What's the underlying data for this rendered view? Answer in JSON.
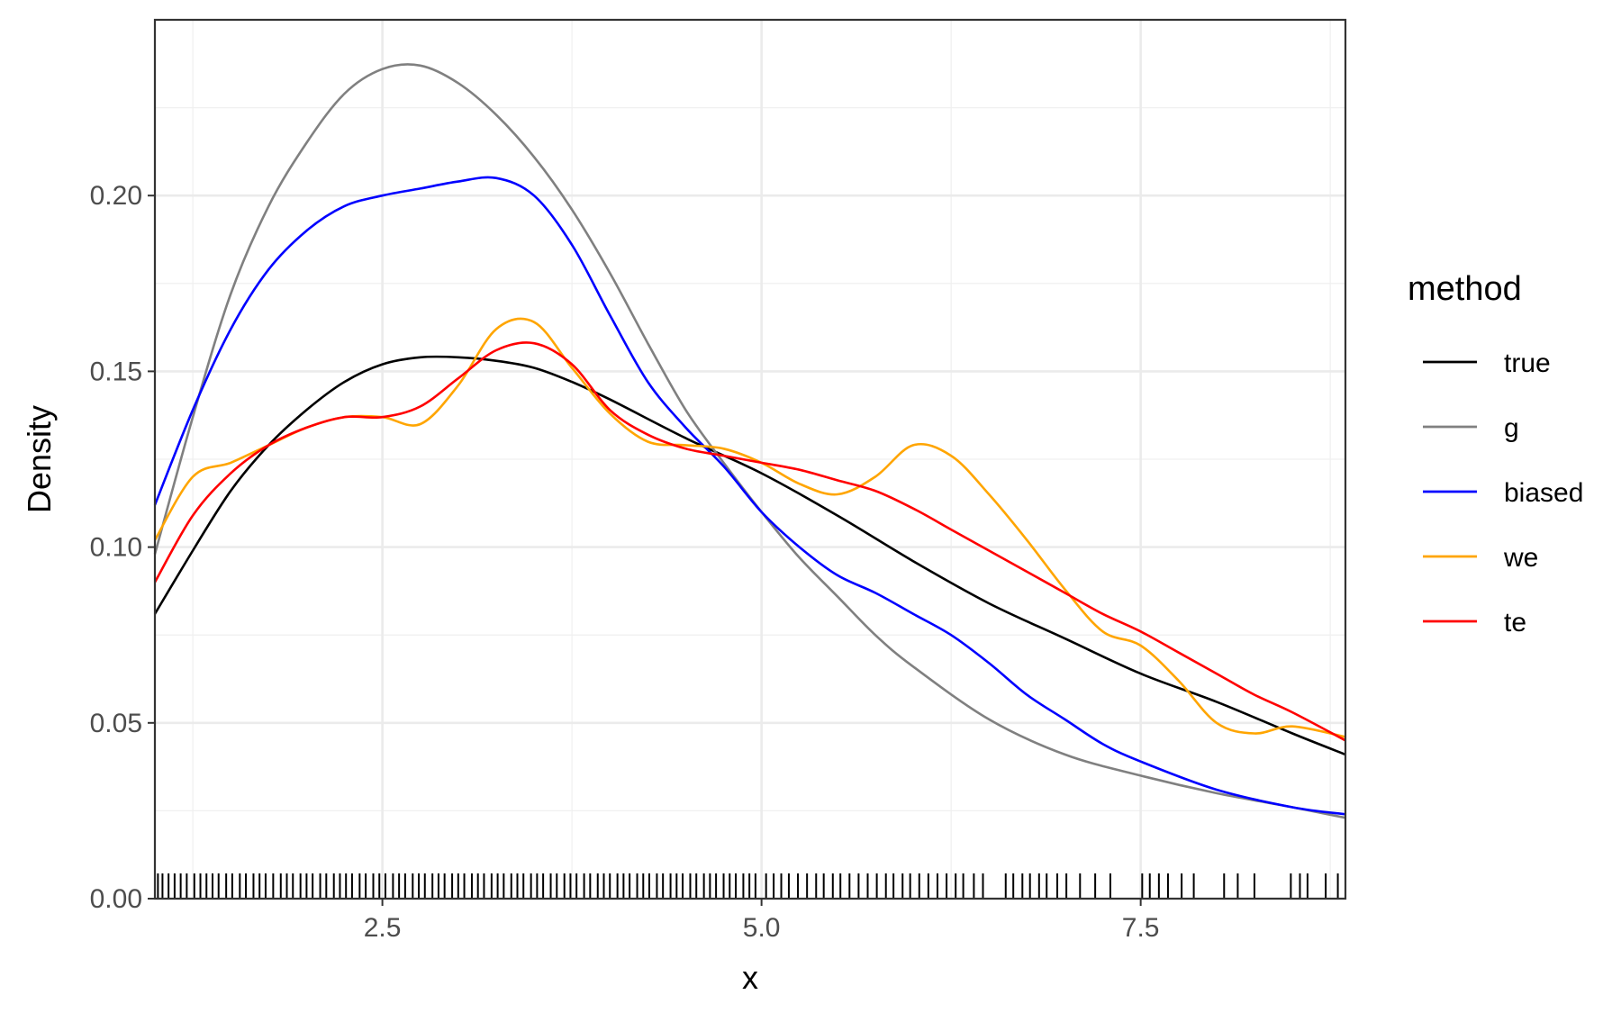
{
  "chart_data": {
    "type": "line",
    "xlabel": "x",
    "ylabel": "Density",
    "xlim": [
      1.0,
      8.85
    ],
    "ylim": [
      0.0,
      0.25
    ],
    "x_ticks": [
      2.5,
      5.0,
      7.5
    ],
    "x_tick_labels": [
      "2.5",
      "5.0",
      "7.5"
    ],
    "y_ticks": [
      0.0,
      0.05,
      0.1,
      0.15,
      0.2
    ],
    "y_tick_labels": [
      "0.00",
      "0.05",
      "0.10",
      "0.15",
      "0.20"
    ],
    "grid": true,
    "legend": {
      "title": "method",
      "position": "right",
      "items": [
        {
          "label": "true",
          "color": "#000000"
        },
        {
          "label": "g",
          "color": "#808080"
        },
        {
          "label": "biased",
          "color": "#0000ff"
        },
        {
          "label": "we",
          "color": "#ffa500"
        },
        {
          "label": "te",
          "color": "#ff0000"
        }
      ]
    },
    "series": [
      {
        "name": "true",
        "color": "#000000",
        "x": [
          1.0,
          1.25,
          1.5,
          1.75,
          2.0,
          2.25,
          2.5,
          2.75,
          3.0,
          3.25,
          3.5,
          3.75,
          4.0,
          4.5,
          5.0,
          5.5,
          6.0,
          6.5,
          7.0,
          7.5,
          8.0,
          8.5,
          8.85
        ],
        "y": [
          0.081,
          0.099,
          0.116,
          0.129,
          0.139,
          0.147,
          0.152,
          0.154,
          0.154,
          0.153,
          0.151,
          0.147,
          0.142,
          0.131,
          0.121,
          0.109,
          0.096,
          0.084,
          0.074,
          0.064,
          0.056,
          0.047,
          0.041
        ]
      },
      {
        "name": "g",
        "color": "#808080",
        "x": [
          1.0,
          1.25,
          1.5,
          1.75,
          2.0,
          2.25,
          2.5,
          2.75,
          3.0,
          3.25,
          3.5,
          3.75,
          4.0,
          4.25,
          4.5,
          4.75,
          5.0,
          5.25,
          5.5,
          5.75,
          6.0,
          6.5,
          7.0,
          7.5,
          8.0,
          8.5,
          8.85
        ],
        "y": [
          0.098,
          0.137,
          0.172,
          0.197,
          0.215,
          0.229,
          0.236,
          0.237,
          0.232,
          0.223,
          0.211,
          0.196,
          0.178,
          0.158,
          0.139,
          0.124,
          0.11,
          0.097,
          0.086,
          0.075,
          0.066,
          0.051,
          0.041,
          0.035,
          0.03,
          0.026,
          0.023
        ]
      },
      {
        "name": "biased",
        "color": "#0000ff",
        "x": [
          1.0,
          1.25,
          1.5,
          1.75,
          2.0,
          2.25,
          2.5,
          2.75,
          3.0,
          3.25,
          3.5,
          3.75,
          4.0,
          4.25,
          4.5,
          4.75,
          5.0,
          5.25,
          5.5,
          5.75,
          6.0,
          6.25,
          6.5,
          6.75,
          7.0,
          7.25,
          7.5,
          8.0,
          8.5,
          8.85
        ],
        "y": [
          0.112,
          0.139,
          0.162,
          0.179,
          0.19,
          0.197,
          0.2,
          0.202,
          0.204,
          0.205,
          0.2,
          0.186,
          0.166,
          0.147,
          0.134,
          0.123,
          0.11,
          0.1,
          0.092,
          0.087,
          0.081,
          0.075,
          0.067,
          0.058,
          0.051,
          0.044,
          0.039,
          0.031,
          0.026,
          0.024
        ]
      },
      {
        "name": "we",
        "color": "#ffa500",
        "x": [
          1.0,
          1.25,
          1.5,
          1.75,
          2.0,
          2.25,
          2.5,
          2.75,
          3.0,
          3.25,
          3.5,
          3.75,
          4.0,
          4.25,
          4.5,
          4.75,
          5.0,
          5.25,
          5.5,
          5.75,
          6.0,
          6.25,
          6.5,
          6.75,
          7.0,
          7.25,
          7.5,
          7.75,
          8.0,
          8.25,
          8.5,
          8.85
        ],
        "y": [
          0.102,
          0.12,
          0.124,
          0.129,
          0.134,
          0.137,
          0.137,
          0.135,
          0.146,
          0.162,
          0.164,
          0.151,
          0.138,
          0.13,
          0.129,
          0.128,
          0.124,
          0.118,
          0.115,
          0.12,
          0.129,
          0.126,
          0.115,
          0.102,
          0.088,
          0.076,
          0.072,
          0.062,
          0.05,
          0.047,
          0.049,
          0.046
        ]
      },
      {
        "name": "te",
        "color": "#ff0000",
        "x": [
          1.0,
          1.25,
          1.5,
          1.75,
          2.0,
          2.25,
          2.5,
          2.75,
          3.0,
          3.25,
          3.5,
          3.75,
          4.0,
          4.25,
          4.5,
          4.75,
          5.0,
          5.25,
          5.5,
          5.75,
          6.0,
          6.25,
          6.5,
          6.75,
          7.0,
          7.25,
          7.5,
          7.75,
          8.0,
          8.25,
          8.5,
          8.85
        ],
        "y": [
          0.09,
          0.109,
          0.121,
          0.129,
          0.134,
          0.137,
          0.137,
          0.14,
          0.148,
          0.156,
          0.158,
          0.152,
          0.139,
          0.132,
          0.128,
          0.126,
          0.124,
          0.122,
          0.119,
          0.116,
          0.111,
          0.105,
          0.099,
          0.093,
          0.087,
          0.081,
          0.076,
          0.07,
          0.064,
          0.058,
          0.053,
          0.045
        ]
      }
    ],
    "rug_x": [
      1.02,
      1.05,
      1.09,
      1.13,
      1.17,
      1.21,
      1.26,
      1.3,
      1.34,
      1.38,
      1.42,
      1.47,
      1.51,
      1.56,
      1.6,
      1.65,
      1.69,
      1.73,
      1.78,
      1.83,
      1.87,
      1.91,
      1.96,
      2.0,
      2.04,
      2.09,
      2.13,
      2.18,
      2.22,
      2.26,
      2.3,
      2.35,
      2.39,
      2.44,
      2.48,
      2.52,
      2.57,
      2.61,
      2.65,
      2.7,
      2.74,
      2.78,
      2.83,
      2.87,
      2.91,
      2.96,
      3.0,
      3.04,
      3.09,
      3.13,
      3.17,
      3.22,
      3.26,
      3.3,
      3.35,
      3.39,
      3.43,
      3.48,
      3.52,
      3.56,
      3.61,
      3.65,
      3.7,
      3.74,
      3.78,
      3.83,
      3.87,
      3.92,
      3.96,
      4.0,
      4.05,
      4.09,
      4.13,
      4.18,
      4.22,
      4.26,
      4.31,
      4.35,
      4.4,
      4.44,
      4.48,
      4.53,
      4.57,
      4.62,
      4.66,
      4.7,
      4.75,
      4.79,
      4.83,
      4.88,
      4.92,
      4.96,
      5.03,
      5.08,
      5.13,
      5.18,
      5.24,
      5.3,
      5.36,
      5.41,
      5.47,
      5.52,
      5.58,
      5.64,
      5.7,
      5.76,
      5.82,
      5.87,
      5.93,
      5.98,
      6.04,
      6.1,
      6.16,
      6.22,
      6.28,
      6.33,
      6.4,
      6.46,
      6.61,
      6.66,
      6.72,
      6.77,
      6.83,
      6.88,
      6.95,
      7.01,
      7.1,
      7.2,
      7.3,
      7.51,
      7.56,
      7.62,
      7.68,
      7.77,
      7.85,
      8.05,
      8.14,
      8.25,
      8.49,
      8.55,
      8.6,
      8.72,
      8.8
    ]
  }
}
